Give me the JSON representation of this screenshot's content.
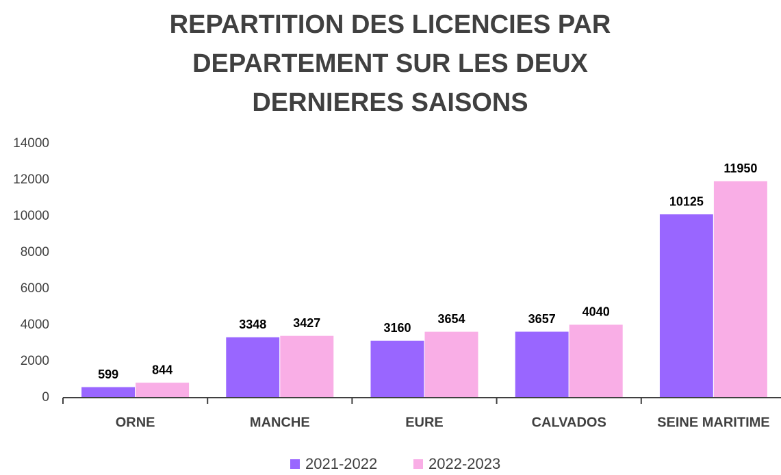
{
  "chart_data": {
    "type": "bar",
    "title": "REPARTITION DES LICENCIES PAR DEPARTEMENT SUR LES DEUX DERNIERES SAISONS",
    "categories": [
      "ORNE",
      "MANCHE",
      "EURE",
      "CALVADOS",
      "SEINE MARITIME"
    ],
    "series": [
      {
        "name": "2021-2022",
        "color": "#9966ff",
        "values": [
          599,
          3348,
          3160,
          3657,
          10125
        ]
      },
      {
        "name": "2022-2023",
        "color": "#f9aee6",
        "values": [
          844,
          3427,
          3654,
          4040,
          11950
        ]
      }
    ],
    "ylim": [
      0,
      14000
    ],
    "yticks": [
      0,
      2000,
      4000,
      6000,
      8000,
      10000,
      12000,
      14000
    ],
    "grid": false,
    "legend": "bottom"
  }
}
